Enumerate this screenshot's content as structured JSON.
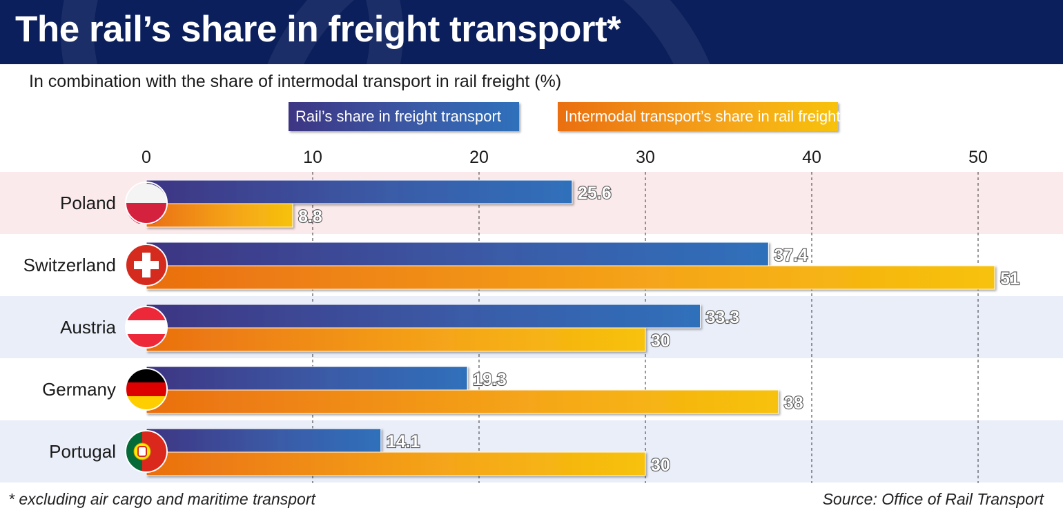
{
  "header": {
    "title": "The rail’s share in freight transport*"
  },
  "subtitle": "In combination with the share of intermodal transport in rail freight (%)",
  "legend": {
    "rail_label": "Rail’s share in freight transport",
    "intermodal_label": "Intermodal transport’s share in rail freight"
  },
  "footnote": "* excluding air cargo and maritime transport",
  "source": "Source: Office of Rail Transport",
  "colors": {
    "header_bg": "#0b1f5c",
    "rail_start": "#3d3583",
    "rail_end": "#2f70bb",
    "intermodal_start": "#ea6f10",
    "intermodal_end": "#f7c20b",
    "poland_band": "#fbeaec",
    "alt_band": "#e9eef9"
  },
  "chart_data": {
    "type": "bar",
    "orientation": "horizontal",
    "categories": [
      "Poland",
      "Switzerland",
      "Austria",
      "Germany",
      "Portugal"
    ],
    "flags": [
      "poland-flag-icon",
      "switzerland-flag-icon",
      "austria-flag-icon",
      "germany-flag-icon",
      "portugal-flag-icon"
    ],
    "series": [
      {
        "name": "Rail’s share in freight transport",
        "values": [
          25.6,
          37.4,
          33.3,
          19.3,
          14.1
        ],
        "labels": [
          "25.6",
          "37.4",
          "33.3",
          "19.3",
          "14.1"
        ]
      },
      {
        "name": "Intermodal transport’s share in rail freight",
        "values": [
          8.8,
          51,
          30,
          38,
          30
        ],
        "labels": [
          "8.8",
          "51",
          "30",
          "38",
          "30"
        ]
      }
    ],
    "x_ticks": [
      0,
      10,
      20,
      30,
      40,
      50
    ],
    "xlim": [
      0,
      55
    ],
    "grid": true,
    "legend_position": "top"
  }
}
